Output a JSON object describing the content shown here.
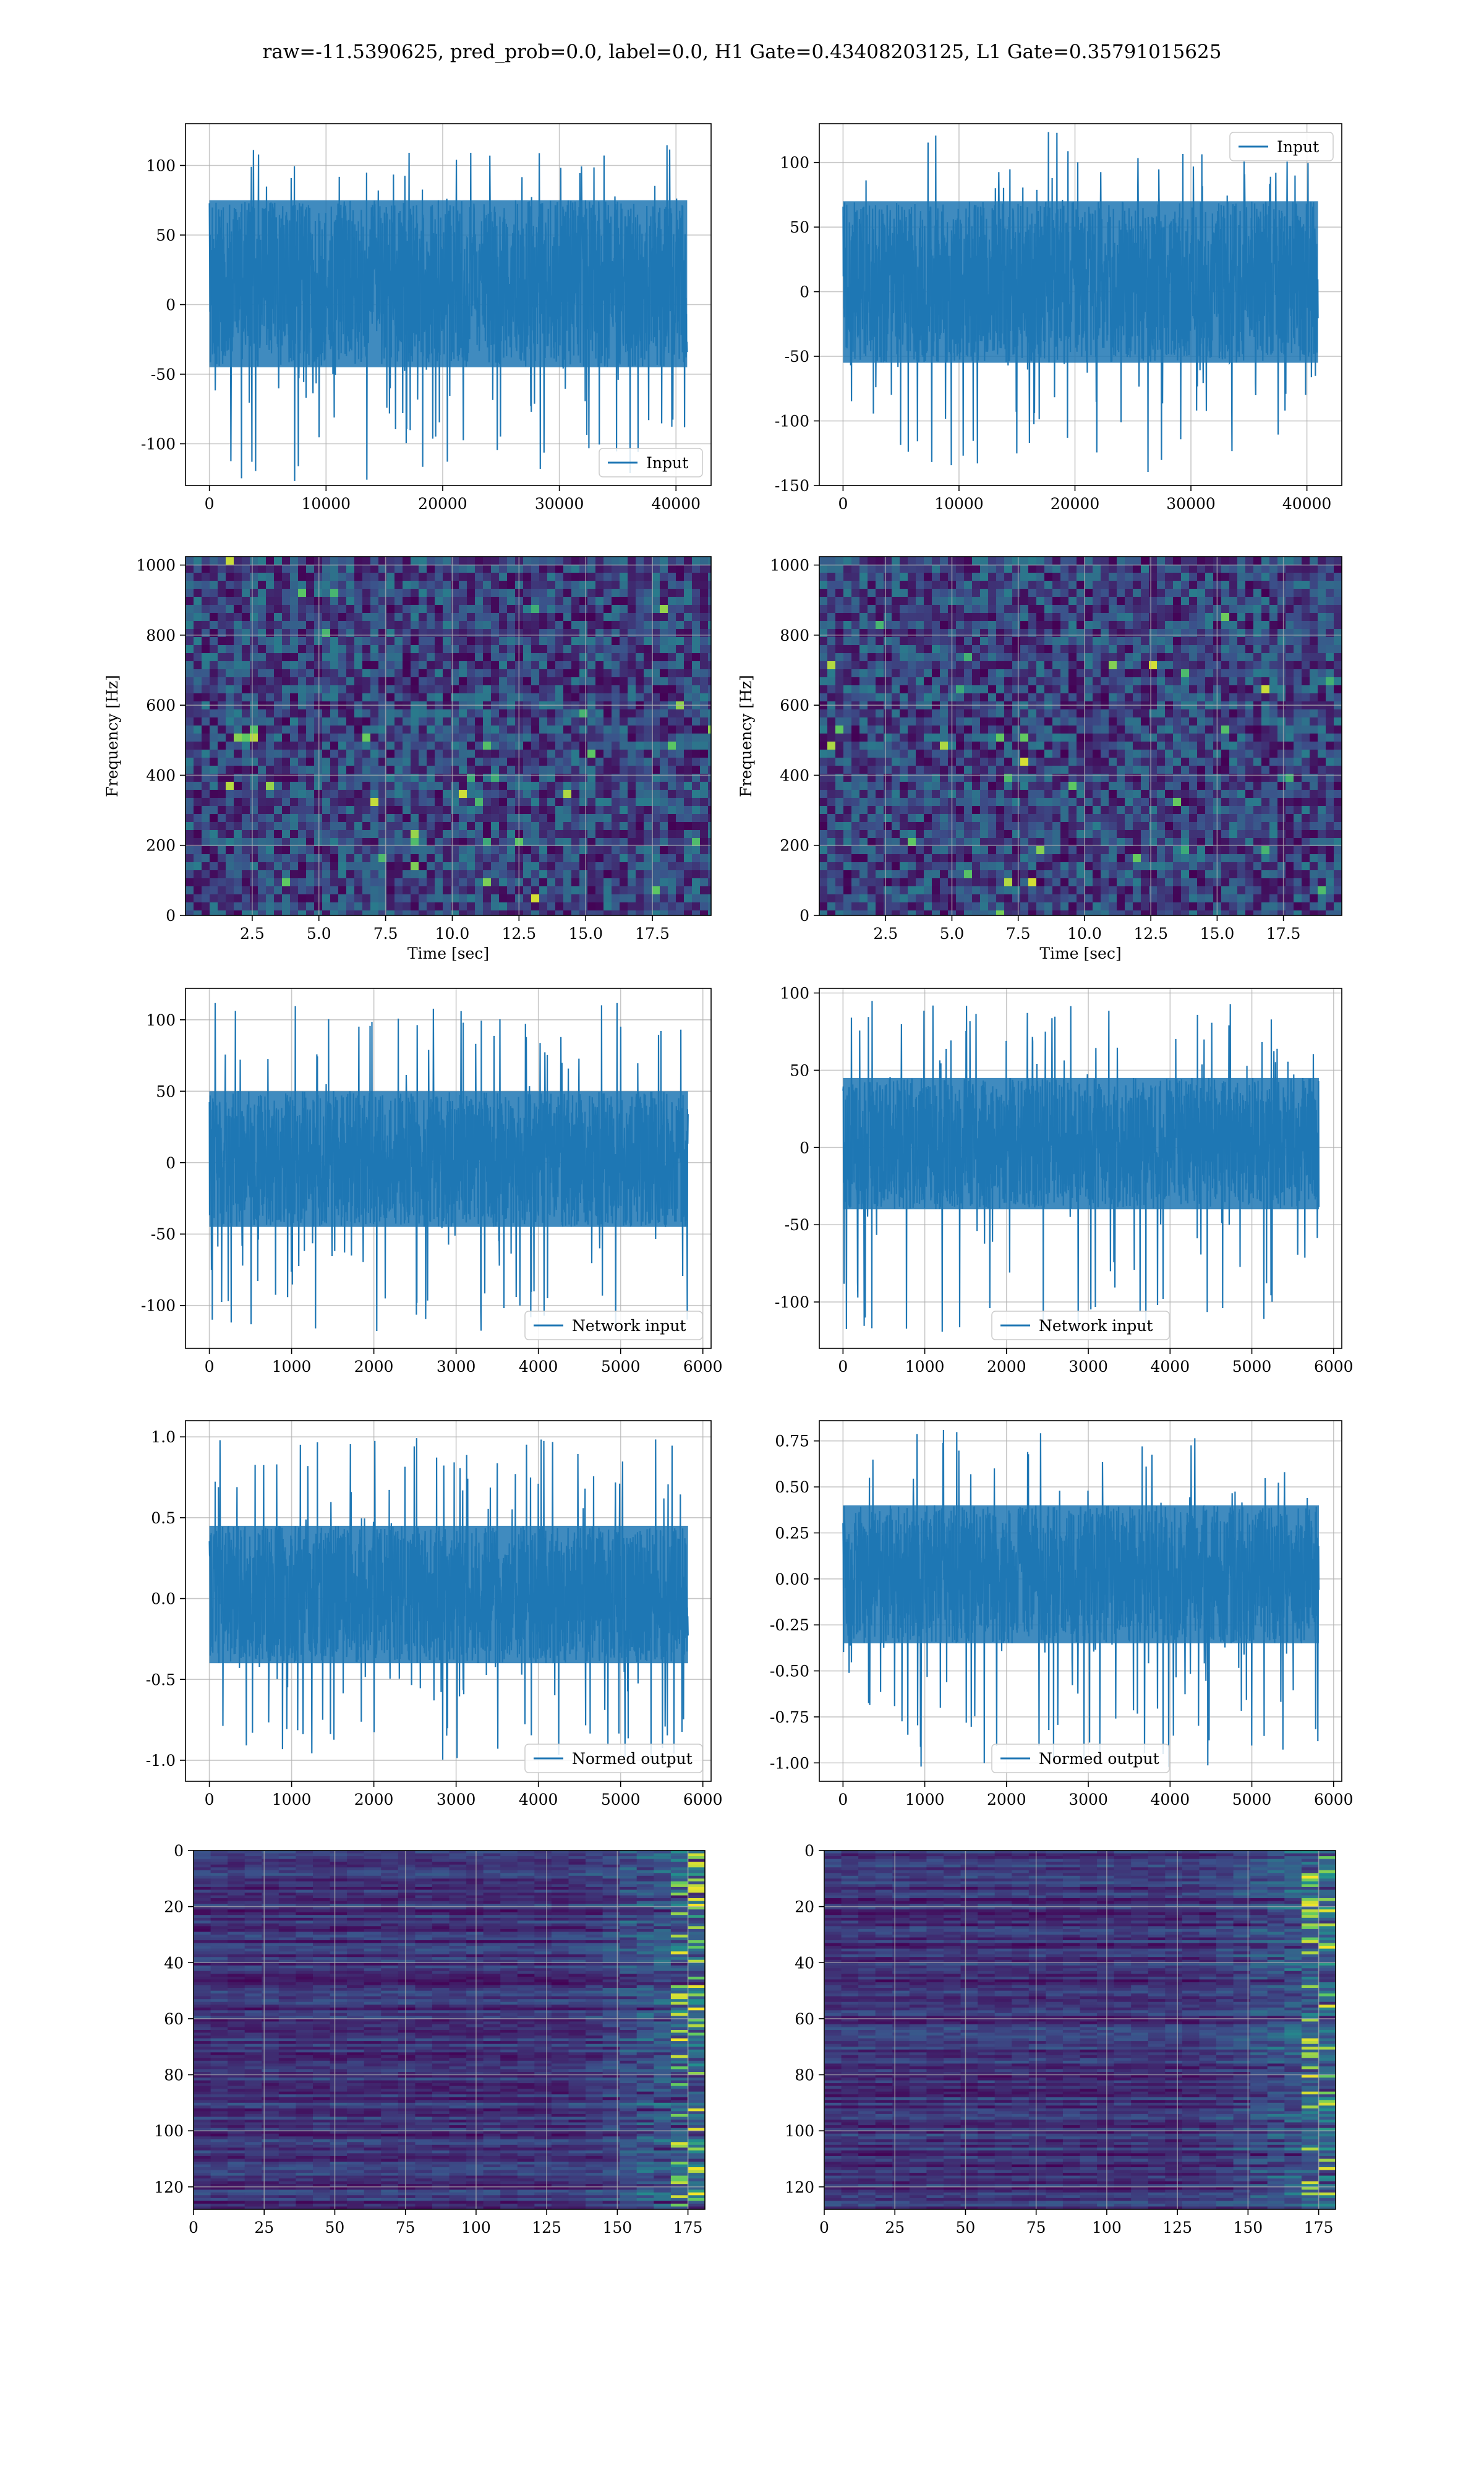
{
  "suptitle": "raw=-11.5390625, pred_prob=0.0, label=0.0, H1 Gate=0.43408203125, L1 Gate=0.35791015625",
  "colors": {
    "line": "#1f77b4",
    "grid": "#b0b0b0",
    "viridis_low": "#440154",
    "viridis_high": "#fde725"
  },
  "chart_data": [
    {
      "id": "r1c1",
      "type": "line",
      "title": "",
      "xlabel": "",
      "ylabel": "",
      "xlim": [
        -2048,
        43008
      ],
      "ylim": [
        -130,
        130
      ],
      "xticks": [
        0,
        10000,
        20000,
        30000,
        40000
      ],
      "yticks": [
        -100,
        -50,
        0,
        50,
        100
      ],
      "legend": "lower right",
      "grid": true,
      "series": [
        {
          "name": "Input",
          "n_samples": 40960,
          "core_range": [
            -45,
            75
          ],
          "spike_range": [
            -128,
            115
          ]
        }
      ]
    },
    {
      "id": "r1c2",
      "type": "line",
      "title": "",
      "xlabel": "",
      "ylabel": "",
      "xlim": [
        -2048,
        43008
      ],
      "ylim": [
        -150,
        130
      ],
      "xticks": [
        0,
        10000,
        20000,
        30000,
        40000
      ],
      "yticks": [
        -150,
        -100,
        -50,
        0,
        50,
        100
      ],
      "legend": "upper right",
      "grid": true,
      "series": [
        {
          "name": "Input",
          "n_samples": 40960,
          "core_range": [
            -55,
            70
          ],
          "spike_range": [
            -140,
            125
          ]
        }
      ]
    },
    {
      "id": "r2c1",
      "type": "heatmap",
      "title": "",
      "xlabel": "Time [sec]",
      "ylabel": "Frequency [Hz]",
      "xlim": [
        0,
        19.7
      ],
      "ylim": [
        0,
        1024
      ],
      "xticks": [
        2.5,
        5.0,
        7.5,
        10.0,
        12.5,
        15.0,
        17.5
      ],
      "yticks": [
        0,
        200,
        400,
        600,
        800,
        1000
      ],
      "grid": true,
      "colormap": "viridis",
      "value_range": [
        0,
        1
      ],
      "typical_level": 0.2
    },
    {
      "id": "r2c2",
      "type": "heatmap",
      "title": "",
      "xlabel": "Time [sec]",
      "ylabel": "Frequency [Hz]",
      "xlim": [
        0,
        19.7
      ],
      "ylim": [
        0,
        1024
      ],
      "xticks": [
        2.5,
        5.0,
        7.5,
        10.0,
        12.5,
        15.0,
        17.5
      ],
      "yticks": [
        0,
        200,
        400,
        600,
        800,
        1000
      ],
      "grid": true,
      "colormap": "viridis",
      "value_range": [
        0,
        1
      ],
      "typical_level": 0.2
    },
    {
      "id": "r3c1",
      "type": "line",
      "title": "",
      "xlabel": "",
      "ylabel": "",
      "xlim": [
        -290,
        6100
      ],
      "ylim": [
        -130,
        122
      ],
      "xticks": [
        0,
        1000,
        2000,
        3000,
        4000,
        5000,
        6000
      ],
      "yticks": [
        -100,
        -50,
        0,
        50,
        100
      ],
      "legend": "lower right",
      "grid": true,
      "series": [
        {
          "name": "Network input",
          "n_samples": 5820,
          "core_range": [
            -45,
            50
          ],
          "spike_range": [
            -120,
            112
          ]
        }
      ]
    },
    {
      "id": "r3c2",
      "type": "line",
      "title": "",
      "xlabel": "",
      "ylabel": "",
      "xlim": [
        -290,
        6100
      ],
      "ylim": [
        -130,
        103
      ],
      "xticks": [
        0,
        1000,
        2000,
        3000,
        4000,
        5000,
        6000
      ],
      "yticks": [
        -100,
        -50,
        0,
        50,
        100
      ],
      "legend": "lower center",
      "grid": true,
      "series": [
        {
          "name": "Network input",
          "n_samples": 5820,
          "core_range": [
            -40,
            45
          ],
          "spike_range": [
            -120,
            95
          ]
        }
      ]
    },
    {
      "id": "r4c1",
      "type": "line",
      "title": "",
      "xlabel": "",
      "ylabel": "",
      "xlim": [
        -290,
        6100
      ],
      "ylim": [
        -1.13,
        1.1
      ],
      "xticks": [
        0,
        1000,
        2000,
        3000,
        4000,
        5000,
        6000
      ],
      "yticks": [
        -1.0,
        -0.5,
        0.0,
        0.5,
        1.0
      ],
      "legend": "lower right",
      "grid": true,
      "series": [
        {
          "name": "Normed output",
          "n_samples": 5820,
          "core_range": [
            -0.4,
            0.45
          ],
          "spike_range": [
            -1.0,
            1.0
          ]
        }
      ]
    },
    {
      "id": "r4c2",
      "type": "line",
      "title": "",
      "xlabel": "",
      "ylabel": "",
      "xlim": [
        -290,
        6100
      ],
      "ylim": [
        -1.1,
        0.86
      ],
      "xticks": [
        0,
        1000,
        2000,
        3000,
        4000,
        5000,
        6000
      ],
      "yticks": [
        -1.0,
        -0.75,
        -0.5,
        -0.25,
        0.0,
        0.25,
        0.5,
        0.75
      ],
      "legend": "lower center",
      "grid": true,
      "series": [
        {
          "name": "Normed output",
          "n_samples": 5820,
          "core_range": [
            -0.35,
            0.4
          ],
          "spike_range": [
            -1.05,
            0.82
          ]
        }
      ]
    },
    {
      "id": "r5c1",
      "type": "heatmap",
      "title": "",
      "xlabel": "",
      "ylabel": "",
      "xlim": [
        0,
        181
      ],
      "ylim": [
        128,
        0
      ],
      "xticks": [
        0,
        25,
        50,
        75,
        100,
        125,
        150,
        175
      ],
      "yticks": [
        0,
        20,
        40,
        60,
        80,
        100,
        120
      ],
      "grid": true,
      "colormap": "viridis",
      "rows": 128,
      "cols": 181,
      "bright_near_col": 175
    },
    {
      "id": "r5c2",
      "type": "heatmap",
      "title": "",
      "xlabel": "",
      "ylabel": "",
      "xlim": [
        0,
        181
      ],
      "ylim": [
        128,
        0
      ],
      "xticks": [
        0,
        25,
        50,
        75,
        100,
        125,
        150,
        175
      ],
      "yticks": [
        0,
        20,
        40,
        60,
        80,
        100,
        120
      ],
      "grid": true,
      "colormap": "viridis",
      "rows": 128,
      "cols": 181,
      "bright_near_col": 175
    }
  ]
}
